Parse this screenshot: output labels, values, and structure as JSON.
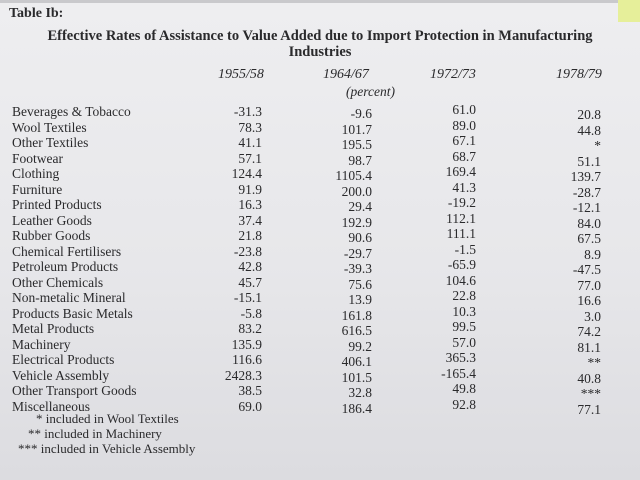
{
  "table": {
    "label": "Table Ib:",
    "title_line1": "Effective Rates of Assistance to Value Added due to Import Protection in Manufacturing",
    "title_line2": "Industries",
    "unit": "(percent)",
    "columns": [
      "1955/58",
      "1964/67",
      "1972/73",
      "1978/79"
    ],
    "rows": [
      {
        "label": "Beverages & Tobacco",
        "values": [
          "-31.3",
          "-9.6",
          "61.0",
          "20.8"
        ]
      },
      {
        "label": "Wool Textiles",
        "values": [
          "78.3",
          "101.7",
          "89.0",
          "44.8"
        ]
      },
      {
        "label": "Other Textiles",
        "values": [
          "41.1",
          "195.5",
          "67.1",
          "*"
        ]
      },
      {
        "label": "Footwear",
        "values": [
          "57.1",
          "98.7",
          "68.7",
          "51.1"
        ]
      },
      {
        "label": "Clothing",
        "values": [
          "124.4",
          "1105.4",
          "169.4",
          "139.7"
        ]
      },
      {
        "label": "Furniture",
        "values": [
          "91.9",
          "200.0",
          "41.3",
          "-28.7"
        ]
      },
      {
        "label": "Printed Products",
        "values": [
          "16.3",
          "29.4",
          "-19.2",
          "-12.1"
        ]
      },
      {
        "label": "Leather Goods",
        "values": [
          "37.4",
          "192.9",
          "112.1",
          "84.0"
        ]
      },
      {
        "label": "Rubber Goods",
        "values": [
          "21.8",
          "90.6",
          "111.1",
          "67.5"
        ]
      },
      {
        "label": "Chemical Fertilisers",
        "values": [
          "-23.8",
          "-29.7",
          "-1.5",
          "8.9"
        ]
      },
      {
        "label": "Petroleum Products",
        "values": [
          "42.8",
          "-39.3",
          "-65.9",
          "-47.5"
        ]
      },
      {
        "label": "Other Chemicals",
        "values": [
          "45.7",
          "75.6",
          "104.6",
          "77.0"
        ]
      },
      {
        "label": "Non-metalic Mineral",
        "values": [
          "-15.1",
          "13.9",
          "22.8",
          "16.6"
        ]
      },
      {
        "label": "Products Basic Metals",
        "values": [
          "-5.8",
          "161.8",
          "10.3",
          "3.0"
        ]
      },
      {
        "label": "Metal Products",
        "values": [
          "83.2",
          "616.5",
          "99.5",
          "74.2"
        ]
      },
      {
        "label": "Machinery",
        "values": [
          "135.9",
          "99.2",
          "57.0",
          "81.1"
        ]
      },
      {
        "label": "Electrical Products",
        "values": [
          "116.6",
          "406.1",
          "365.3",
          "**"
        ]
      },
      {
        "label": "Vehicle Assembly",
        "values": [
          "2428.3",
          "101.5",
          "-165.4",
          "40.8"
        ]
      },
      {
        "label": "Other Transport Goods",
        "values": [
          "38.5",
          "32.8",
          "49.8",
          "***"
        ]
      },
      {
        "label": "Miscellaneous",
        "values": [
          "69.0",
          "186.4",
          "92.8",
          "77.1"
        ]
      }
    ],
    "footnotes": [
      "* included in Wool Textiles",
      "** included in Machinery",
      "*** included in Vehicle Assembly"
    ]
  },
  "colors": {
    "paper": "#e9e9ec",
    "ink": "#2a2a2c",
    "sticky_note": "#e6ef9a"
  }
}
